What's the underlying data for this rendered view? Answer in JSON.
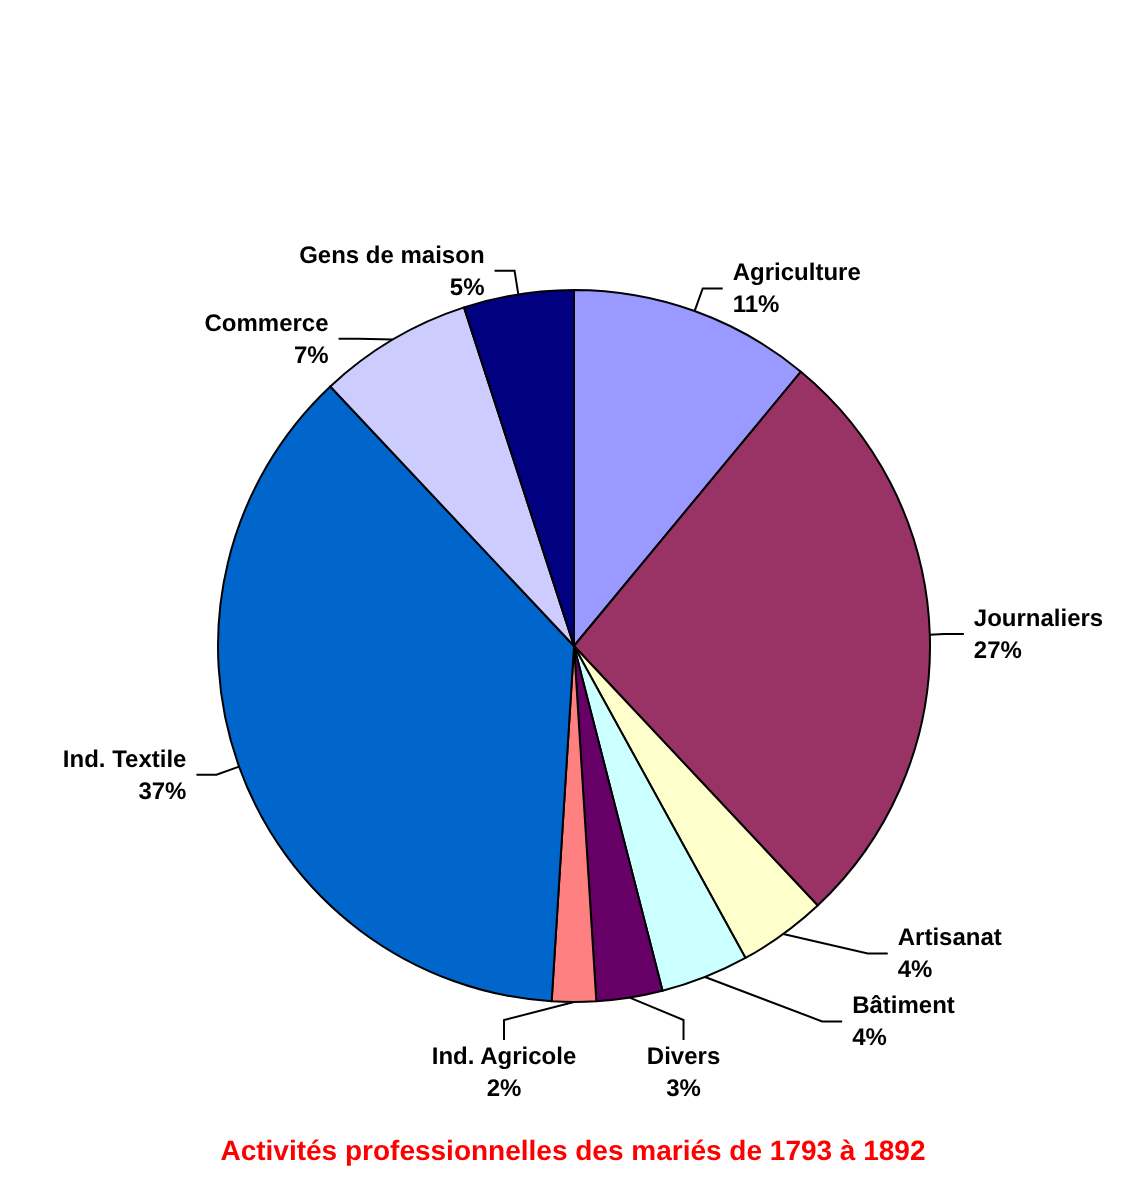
{
  "chart_data": {
    "type": "pie",
    "title": "Activités professionnelles des mariés de 1793 à 1892",
    "categories": [
      "Agriculture",
      "Journaliers",
      "Artisanat",
      "Bâtiment",
      "Divers",
      "Ind. Agricole",
      "Ind. Textile",
      "Commerce",
      "Gens de maison"
    ],
    "values": [
      11,
      27,
      4,
      4,
      3,
      2,
      37,
      7,
      5
    ],
    "value_labels": [
      "11%",
      "27%",
      "4%",
      "4%",
      "3%",
      "2%",
      "37%",
      "7%",
      "5%"
    ],
    "colors": [
      "#9999ff",
      "#993366",
      "#ffffcc",
      "#ccffff",
      "#660066",
      "#ff8080",
      "#0066cc",
      "#ccccff",
      "#000080"
    ],
    "legend": false
  }
}
